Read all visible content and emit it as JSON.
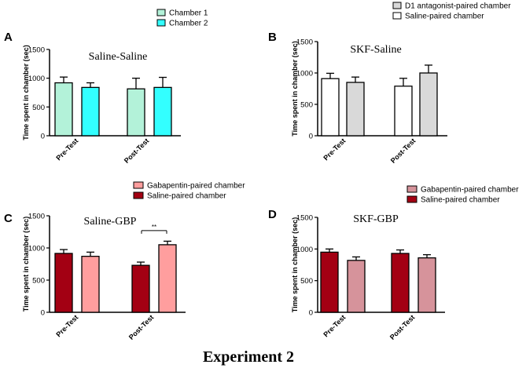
{
  "figure": {
    "caption": "Experiment 2"
  },
  "chart_data": [
    {
      "panel": "A",
      "type": "bar",
      "title": "Saline-Saline",
      "ylabel": "Time spent in chamber (sec)",
      "ylim": [
        0,
        1500
      ],
      "yticks": [
        0,
        500,
        1000,
        1500
      ],
      "categories": [
        "Pre-Test",
        "Post-Test"
      ],
      "legend_position": "top-center",
      "series": [
        {
          "name": "Chamber 1",
          "color": "#b3f2d9",
          "values": [
            920,
            815
          ],
          "errors": [
            100,
            185
          ]
        },
        {
          "name": "Chamber 2",
          "color": "#33ffff",
          "values": [
            840,
            840
          ],
          "errors": [
            80,
            175
          ]
        }
      ],
      "annotations": []
    },
    {
      "panel": "B",
      "type": "bar",
      "title": "SKF-Saline",
      "ylabel": "Time spent in chamber (sec)",
      "ylim": [
        0,
        1500
      ],
      "yticks": [
        0,
        500,
        1000,
        1500
      ],
      "categories": [
        "Pre-Test",
        "Post-Test"
      ],
      "legend_position": "top-right",
      "series": [
        {
          "name": "D1 antagonist-paired chamber",
          "color": "#d9d9d9",
          "values": [
            850,
            1000
          ],
          "errors": [
            85,
            125
          ]
        },
        {
          "name": "Saline-paired chamber",
          "color": "#ffffff",
          "values": [
            910,
            790
          ],
          "errors": [
            85,
            125
          ]
        }
      ],
      "annotations": []
    },
    {
      "panel": "C",
      "type": "bar",
      "title": "Saline-GBP",
      "ylabel": "Time spent in chamber (sec)",
      "ylim": [
        0,
        1500
      ],
      "yticks": [
        0,
        500,
        1000,
        1500
      ],
      "categories": [
        "Pre-Test",
        "Post-Test"
      ],
      "legend_position": "top-center",
      "series": [
        {
          "name": "Gabapentin-paired chamber",
          "color": "#ff9e9e",
          "values": [
            870,
            1050
          ],
          "errors": [
            65,
            55
          ]
        },
        {
          "name": "Saline-paired chamber",
          "color": "#a30013",
          "values": [
            915,
            730
          ],
          "errors": [
            60,
            50
          ]
        }
      ],
      "annotations": [
        {
          "text": "**",
          "between": "Post-Test"
        }
      ]
    },
    {
      "panel": "D",
      "type": "bar",
      "title": "SKF-GBP",
      "ylabel": "Time spent in chamber (sec)",
      "ylim": [
        0,
        1500
      ],
      "yticks": [
        0,
        500,
        1000,
        1500
      ],
      "categories": [
        "Pre-Test",
        "Post-Test"
      ],
      "legend_position": "top-right",
      "series": [
        {
          "name": "Gabapentin-paired chamber",
          "color": "#d6939b",
          "values": [
            820,
            860
          ],
          "errors": [
            55,
            50
          ]
        },
        {
          "name": "Saline-paired chamber",
          "color": "#a30013",
          "values": [
            950,
            930
          ],
          "errors": [
            50,
            55
          ]
        }
      ],
      "annotations": []
    }
  ]
}
